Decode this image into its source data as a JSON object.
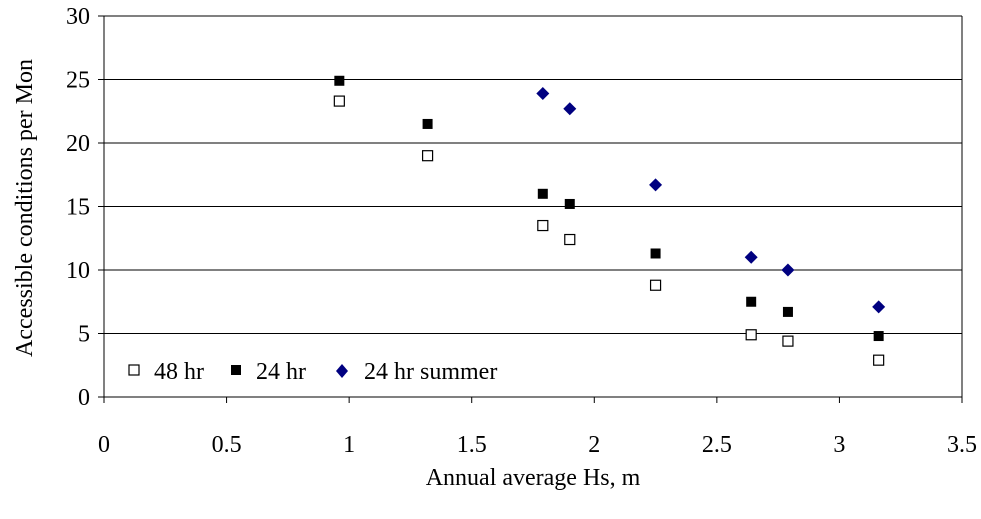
{
  "chart_data": {
    "type": "scatter",
    "xlabel": "Annual average Hs, m",
    "ylabel": "Accessible conditions per Mon",
    "xlim": [
      0,
      3.5
    ],
    "ylim": [
      0,
      30
    ],
    "xticks": [
      "0",
      "0.5",
      "1",
      "1.5",
      "2",
      "2.5",
      "3",
      "3.5"
    ],
    "yticks": [
      "0",
      "5",
      "10",
      "15",
      "20",
      "25",
      "30"
    ],
    "grid": "horizontal",
    "legend_position": "bottom-left",
    "series": [
      {
        "name": "48 hr",
        "marker": "hollow-square",
        "color": "#000000",
        "points": [
          [
            0.96,
            23.3
          ],
          [
            1.32,
            19.0
          ],
          [
            1.79,
            13.5
          ],
          [
            1.9,
            12.4
          ],
          [
            2.25,
            8.8
          ],
          [
            2.64,
            4.9
          ],
          [
            2.79,
            4.4
          ],
          [
            3.16,
            2.9
          ]
        ]
      },
      {
        "name": "24 hr",
        "marker": "filled-square",
        "color": "#000000",
        "points": [
          [
            0.96,
            24.9
          ],
          [
            1.32,
            21.5
          ],
          [
            1.79,
            16.0
          ],
          [
            1.9,
            15.2
          ],
          [
            2.25,
            11.3
          ],
          [
            2.64,
            7.5
          ],
          [
            2.79,
            6.7
          ],
          [
            3.16,
            4.8
          ]
        ]
      },
      {
        "name": "24 hr summer",
        "marker": "diamond",
        "color": "#000080",
        "points": [
          [
            1.79,
            23.9
          ],
          [
            1.9,
            22.7
          ],
          [
            2.25,
            16.7
          ],
          [
            2.64,
            11.0
          ],
          [
            2.79,
            10.0
          ],
          [
            3.16,
            7.1
          ]
        ]
      }
    ]
  }
}
